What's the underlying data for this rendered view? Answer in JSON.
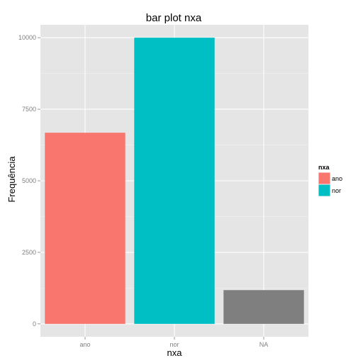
{
  "chart_data": {
    "type": "bar",
    "title": "bar plot nxa",
    "xlabel": "nxa",
    "ylabel": "Frequência",
    "categories": [
      "ano",
      "nor",
      "NA"
    ],
    "values": [
      6680,
      10000,
      1180
    ],
    "colors": [
      "#F8766D",
      "#00BFC4",
      "#7F7F7F"
    ],
    "ylim": [
      -450,
      10450
    ],
    "yticks": [
      0,
      2500,
      5000,
      7500,
      10000
    ],
    "grid": true,
    "legend": {
      "title": "nxa",
      "position": "right",
      "entries": [
        {
          "label": "ano",
          "color": "#F8766D"
        },
        {
          "label": "nor",
          "color": "#00BFC4"
        }
      ]
    }
  }
}
